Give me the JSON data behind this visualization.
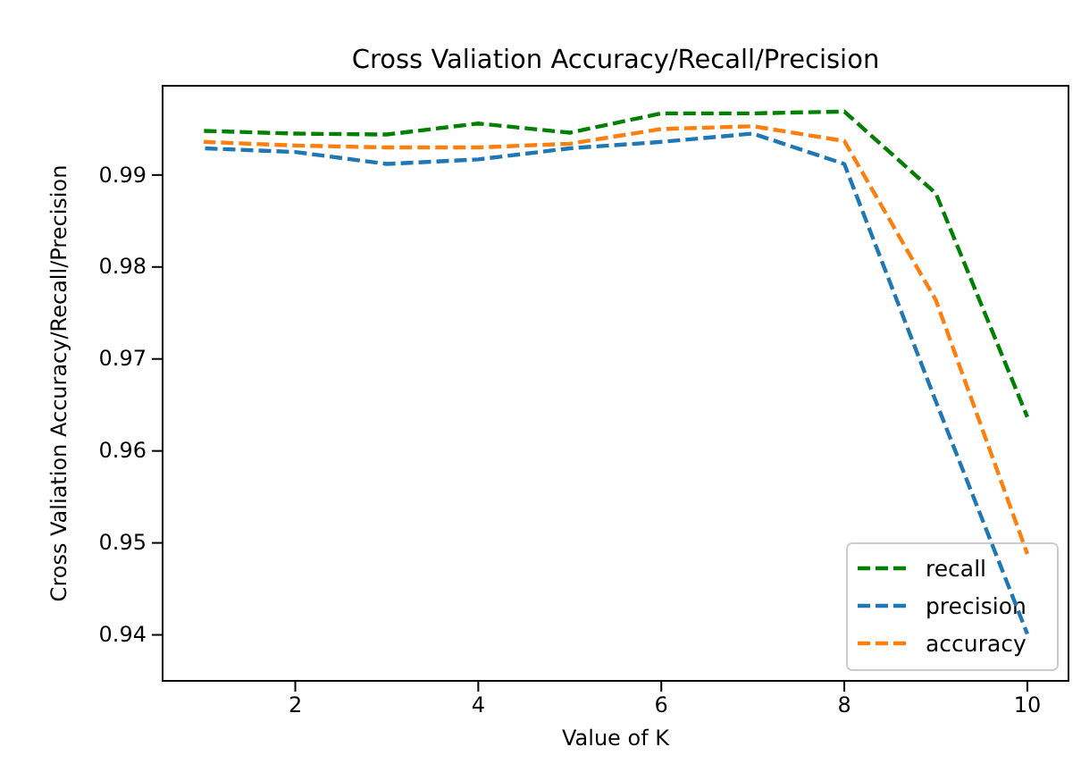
{
  "chart_data": {
    "type": "line",
    "title": "Cross Valiation Accuracy/Recall/Precision",
    "xlabel": "Value of K",
    "ylabel": "Cross Valiation Accuracy/Recall/Precision",
    "x": [
      1,
      2,
      3,
      4,
      5,
      6,
      7,
      8,
      9,
      10
    ],
    "series": [
      {
        "name": "recall",
        "color": "#008000",
        "values": [
          0.9948,
          0.9945,
          0.9944,
          0.9956,
          0.9946,
          0.9967,
          0.9967,
          0.9969,
          0.988,
          0.9637
        ]
      },
      {
        "name": "precision",
        "color": "#1f77b4",
        "values": [
          0.9929,
          0.9925,
          0.9912,
          0.9917,
          0.9929,
          0.9936,
          0.9945,
          0.9912,
          0.9654,
          0.9401
        ]
      },
      {
        "name": "accuracy",
        "color": "#ff7f0e",
        "values": [
          0.9936,
          0.9932,
          0.993,
          0.993,
          0.9934,
          0.995,
          0.9953,
          0.9937,
          0.9764,
          0.9488
        ]
      }
    ],
    "xlim": [
      0.55,
      10.45
    ],
    "xticks": [
      2,
      4,
      6,
      8,
      10
    ],
    "ylim": [
      0.935,
      0.9997
    ],
    "yticks": [
      0.94,
      0.95,
      0.96,
      0.97,
      0.98,
      0.99
    ],
    "legend": "bottom right",
    "line_style": "dashed",
    "marker": "none",
    "grid": false
  }
}
